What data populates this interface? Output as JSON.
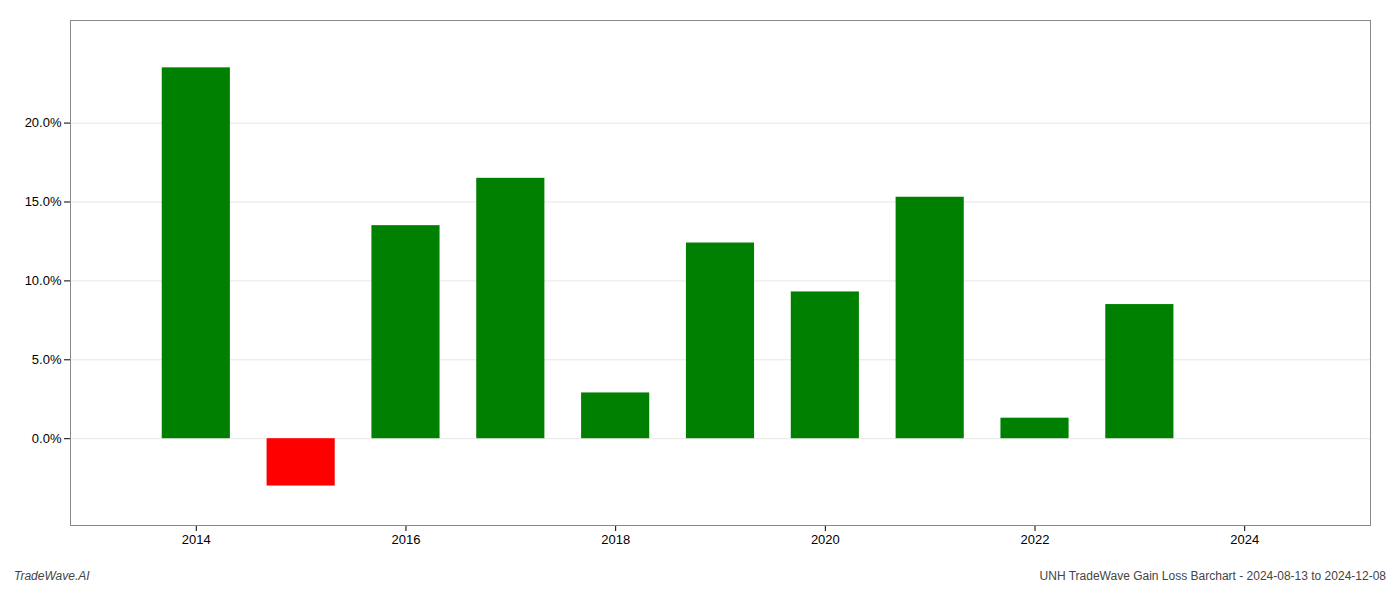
{
  "chart_data": {
    "type": "bar",
    "x": [
      2014,
      2015,
      2016,
      2017,
      2018,
      2019,
      2020,
      2021,
      2022,
      2023
    ],
    "values": [
      0.235,
      -0.03,
      0.135,
      0.165,
      0.029,
      0.124,
      0.093,
      0.153,
      0.013,
      0.085
    ],
    "colors": [
      "#008000",
      "#ff0000",
      "#008000",
      "#008000",
      "#008000",
      "#008000",
      "#008000",
      "#008000",
      "#008000",
      "#008000"
    ],
    "xlim": [
      2012.8,
      2025.2
    ],
    "xticks": [
      2014,
      2016,
      2018,
      2020,
      2022,
      2024
    ],
    "ylim": [
      -0.055,
      0.265
    ],
    "yticks": [
      {
        "value": 0.0,
        "label": "0.0%"
      },
      {
        "value": 0.05,
        "label": "5.0%"
      },
      {
        "value": 0.1,
        "label": "10.0%"
      },
      {
        "value": 0.15,
        "label": "15.0%"
      },
      {
        "value": 0.2,
        "label": "20.0%"
      }
    ],
    "grid": true,
    "annotations": [
      "TradeWave.AI",
      "UNH TradeWave Gain Loss Barchart - 2024-08-13 to 2024-12-08"
    ]
  }
}
